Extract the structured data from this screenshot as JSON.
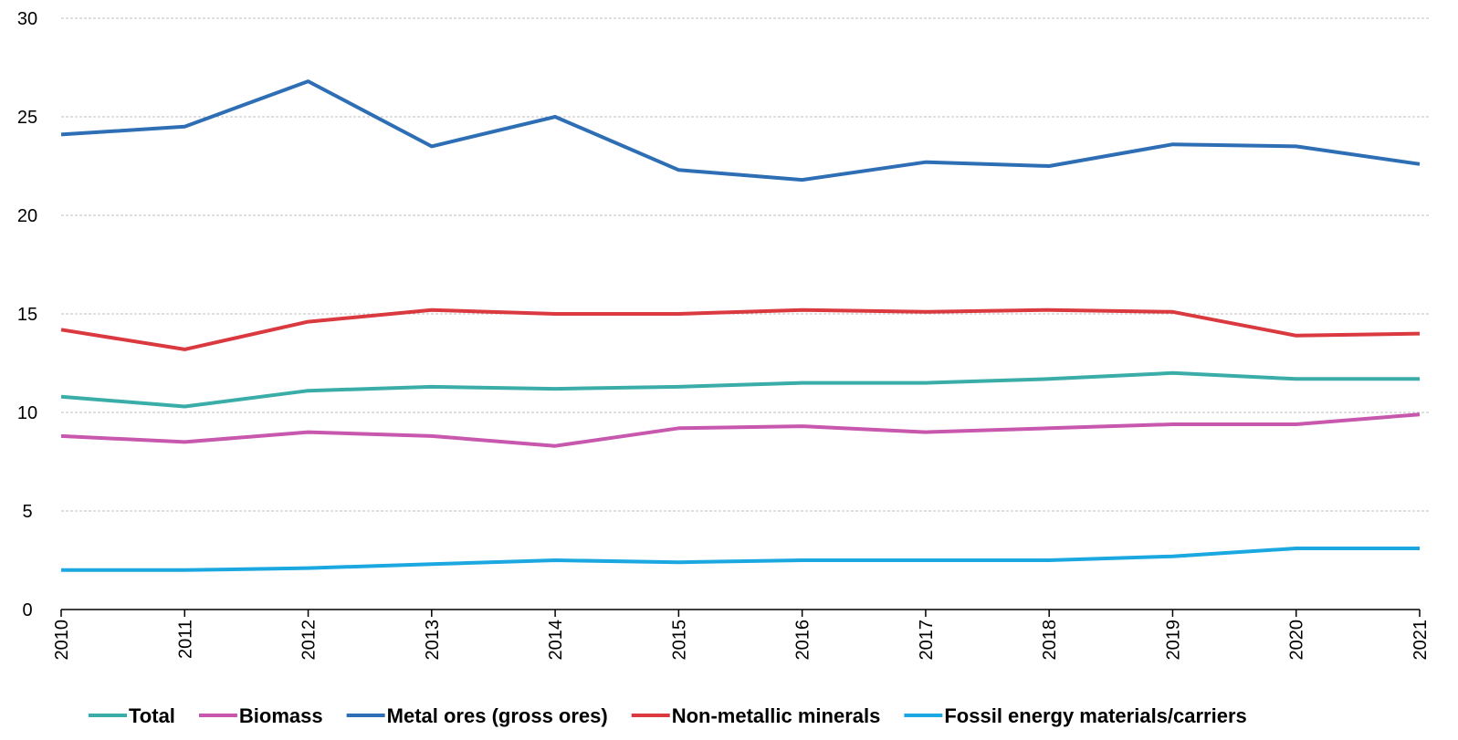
{
  "chart_data": {
    "type": "line",
    "title": "",
    "xlabel": "",
    "ylabel": "",
    "categories": [
      "2010",
      "2011",
      "2012",
      "2013",
      "2014",
      "2015",
      "2016",
      "2017",
      "2018",
      "2019",
      "2020",
      "2021"
    ],
    "ylim": [
      0,
      30
    ],
    "yticks": [
      "0",
      "5",
      "10",
      "15",
      "20",
      "25",
      "30"
    ],
    "grid": "horizontal dashed",
    "legend_position": "bottom",
    "series": [
      {
        "name": "Total",
        "color": "#3AADA9",
        "values": [
          10.8,
          10.3,
          11.1,
          11.3,
          11.2,
          11.3,
          11.5,
          11.5,
          11.7,
          12.0,
          11.7,
          11.7
        ]
      },
      {
        "name": "Biomass",
        "color": "#C857AE",
        "values": [
          8.8,
          8.5,
          9.0,
          8.8,
          8.3,
          9.2,
          9.3,
          9.0,
          9.2,
          9.4,
          9.4,
          9.9
        ]
      },
      {
        "name": "Metal ores (gross ores)",
        "color": "#2E6EB5",
        "values": [
          24.1,
          24.5,
          26.8,
          23.5,
          25.0,
          22.3,
          21.8,
          22.7,
          22.5,
          23.6,
          23.5,
          22.6
        ]
      },
      {
        "name": "Non-metallic minerals",
        "color": "#D9393F",
        "values": [
          14.2,
          13.2,
          14.6,
          15.2,
          15.0,
          15.0,
          15.2,
          15.1,
          15.2,
          15.1,
          13.9,
          14.0
        ]
      },
      {
        "name": "Fossil energy materials/carriers",
        "color": "#1BA8E0",
        "values": [
          2.0,
          2.0,
          2.1,
          2.3,
          2.5,
          2.4,
          2.5,
          2.5,
          2.5,
          2.7,
          3.1,
          3.1
        ]
      }
    ]
  }
}
